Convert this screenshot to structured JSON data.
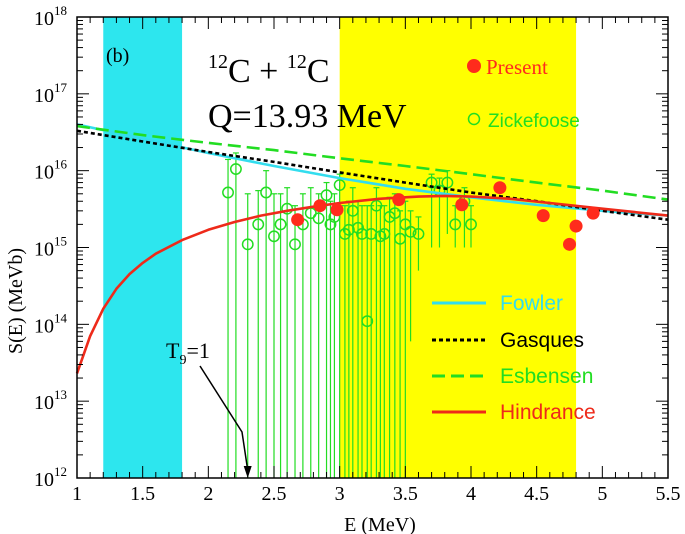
{
  "chart_data": {
    "type": "scatter",
    "panel_label": "(b)",
    "reaction": {
      "a": "12",
      "b": "C + ",
      "c": "12",
      "d": "C"
    },
    "q_value": "Q=13.93 MeV",
    "xlabel": "E (MeV)",
    "ylabel": "S(E) (MeVb)",
    "xlim": [
      1,
      5.5
    ],
    "ylim_log10": [
      12,
      18
    ],
    "yscale": "log",
    "x_ticks": [
      "1",
      "1.5",
      "2",
      "2.5",
      "3",
      "3.5",
      "4",
      "4.5",
      "5",
      "5.5"
    ],
    "y_ticks": [
      {
        "base": "10",
        "exp": "12"
      },
      {
        "base": "10",
        "exp": "13"
      },
      {
        "base": "10",
        "exp": "14"
      },
      {
        "base": "10",
        "exp": "15"
      },
      {
        "base": "10",
        "exp": "16"
      },
      {
        "base": "10",
        "exp": "17"
      },
      {
        "base": "10",
        "exp": "18"
      }
    ],
    "shaded_regions": [
      {
        "x": [
          1.2,
          1.8
        ],
        "color": "#2de6ee"
      },
      {
        "x": [
          3.0,
          4.8
        ],
        "color": "#ffff00"
      }
    ],
    "annotation": {
      "base": "T",
      "sub": "9",
      "rest": "=1",
      "x": 2.3
    },
    "series": [
      {
        "name": "Present",
        "kind": "points",
        "color": "#ff2b1c",
        "x": [
          2.68,
          2.85,
          2.98,
          3.45,
          3.93,
          4.22,
          4.55,
          4.75,
          4.8,
          4.93
        ],
        "y": [
          2300000000000000.0,
          3500000000000000.0,
          3100000000000000.0,
          4200000000000000.0,
          3600000000000000.0,
          6000000000000000.0,
          2600000000000000.0,
          1100000000000000.0,
          1900000000000000.0,
          2800000000000000.0
        ]
      },
      {
        "name": "Zickefoose",
        "kind": "points-errorbars",
        "color": "#22dd22",
        "x": [
          2.15,
          2.21,
          2.3,
          2.38,
          2.44,
          2.5,
          2.55,
          2.6,
          2.66,
          2.72,
          2.78,
          2.84,
          2.9,
          2.93,
          2.96,
          3.0,
          3.04,
          3.07,
          3.1,
          3.14,
          3.17,
          3.21,
          3.24,
          3.28,
          3.31,
          3.34,
          3.38,
          3.42,
          3.46,
          3.5,
          3.54,
          3.6,
          3.7,
          3.76,
          3.82,
          3.88,
          3.95,
          4.0
        ],
        "y": [
          5200000000000000.0,
          1.05e+16,
          1100000000000000.0,
          2000000000000000.0,
          5200000000000000.0,
          1400000000000000.0,
          2000000000000000.0,
          3200000000000000.0,
          1100000000000000.0,
          2000000000000000.0,
          2800000000000000.0,
          2400000000000000.0,
          4800000000000000.0,
          2000000000000000.0,
          2500000000000000.0,
          6500000000000000.0,
          1500000000000000.0,
          1700000000000000.0,
          3000000000000000.0,
          1800000000000000.0,
          1500000000000000.0,
          110000000000000.0,
          1500000000000000.0,
          3500000000000000.0,
          1400000000000000.0,
          1500000000000000.0,
          2500000000000000.0,
          2800000000000000.0,
          1300000000000000.0,
          2000000000000000.0,
          1600000000000000.0,
          1500000000000000.0,
          7000000000000000.0,
          5500000000000000.0,
          7000000000000000.0,
          2000000000000000.0,
          4000000000000000.0,
          2000000000000000.0
        ],
        "y_low": [
          1000000000000.0,
          1000000000000.0,
          1000000000000.0,
          1000000000000.0,
          1000000000000.0,
          1000000000000.0,
          1000000000000.0,
          1000000000000.0,
          1000000000000.0,
          1000000000000.0,
          1000000000000.0,
          1000000000000.0,
          1000000000000.0,
          1000000000000.0,
          1000000000000.0,
          1000000000000.0,
          1000000000000.0,
          1000000000000.0,
          1000000000000.0,
          1000000000000.0,
          1000000000000.0,
          1000000000000.0,
          1000000000000.0,
          1000000000000.0,
          1000000000000.0,
          1000000000000.0,
          1000000000000.0,
          1000000000000.0,
          1000000000000.0,
          1000000000000.0,
          60000000000000.0,
          500000000000000.0,
          1000000000000000.0,
          1000000000000000.0,
          1500000000000000.0,
          1000000000000000.0,
          1000000000000000.0,
          1000000000000000.0
        ],
        "y_high": [
          1.4e+16,
          1.7e+16,
          5000000000000000.0,
          5500000000000000.0,
          1e+16,
          5000000000000000.0,
          5000000000000000.0,
          6000000000000000.0,
          3500000000000000.0,
          5000000000000000.0,
          6000000000000000.0,
          5000000000000000.0,
          7000000000000000.0,
          4000000000000000.0,
          5000000000000000.0,
          9000000000000000.0,
          3500000000000000.0,
          4000000000000000.0,
          6000000000000000.0,
          4000000000000000.0,
          3500000000000000.0,
          3500000000000000.0,
          3500000000000000.0,
          6000000000000000.0,
          3500000000000000.0,
          3500000000000000.0,
          4500000000000000.0,
          5000000000000000.0,
          3000000000000000.0,
          4000000000000000.0,
          3000000000000000.0,
          2500000000000000.0,
          9000000000000000.0,
          8000000000000000.0,
          1e+16,
          3500000000000000.0,
          6000000000000000.0,
          3500000000000000.0
        ]
      },
      {
        "name": "Fowler",
        "kind": "line",
        "color": "#33ddee",
        "dash": "solid",
        "x": [
          1.0,
          1.5,
          2.0,
          2.5,
          3.0,
          3.5,
          4.0,
          4.5,
          5.0,
          5.5
        ],
        "y": [
          4e+16,
          2.6e+16,
          1.7e+16,
          1.15e+16,
          8000000000000000.0,
          5800000000000000.0,
          4500000000000000.0,
          3600000000000000.0,
          3000000000000000.0,
          2600000000000000.0
        ]
      },
      {
        "name": "Gasques",
        "kind": "line",
        "color": "#000000",
        "dash": "dotted",
        "x": [
          1.0,
          1.5,
          2.0,
          2.5,
          3.0,
          3.5,
          4.0,
          4.5,
          5.0,
          5.5
        ],
        "y": [
          3.3e+16,
          2.4e+16,
          1.75e+16,
          1.3e+16,
          9500000000000000.0,
          7000000000000000.0,
          5200000000000000.0,
          4000000000000000.0,
          3000000000000000.0,
          2300000000000000.0
        ]
      },
      {
        "name": "Esbensen",
        "kind": "line",
        "color": "#22dd22",
        "dash": "dashed",
        "x": [
          1.0,
          1.5,
          2.0,
          2.5,
          3.0,
          3.5,
          4.0,
          4.5,
          5.0,
          5.5
        ],
        "y": [
          3.8e+16,
          2.9e+16,
          2.3e+16,
          1.85e+16,
          1.45e+16,
          1.15e+16,
          9000000000000000.0,
          7000000000000000.0,
          5500000000000000.0,
          4200000000000000.0
        ]
      },
      {
        "name": "Hindrance",
        "kind": "line",
        "color": "#ee2a1a",
        "dash": "solid",
        "x": [
          1.0,
          1.1,
          1.2,
          1.3,
          1.4,
          1.5,
          1.6,
          1.8,
          2.0,
          2.2,
          2.4,
          2.6,
          2.8,
          3.0,
          3.3,
          3.6,
          3.8,
          4.0,
          4.3,
          4.6,
          5.0,
          5.5
        ],
        "y": [
          23000000000000.0,
          70000000000000.0,
          160000000000000.0,
          290000000000000.0,
          450000000000000.0,
          630000000000000.0,
          830000000000000.0,
          1250000000000000.0,
          1700000000000000.0,
          2150000000000000.0,
          2600000000000000.0,
          3000000000000000.0,
          3400000000000000.0,
          3800000000000000.0,
          4300000000000000.0,
          4600000000000000.0,
          4700000000000000.0,
          4600000000000000.0,
          4300000000000000.0,
          3800000000000000.0,
          3200000000000000.0,
          2600000000000000.0
        ]
      }
    ],
    "legend": {
      "top": [
        "Present",
        "Zickefoose"
      ],
      "bottom": [
        "Fowler",
        "Gasques",
        "Esbensen",
        "Hindrance"
      ]
    },
    "grid": false
  }
}
